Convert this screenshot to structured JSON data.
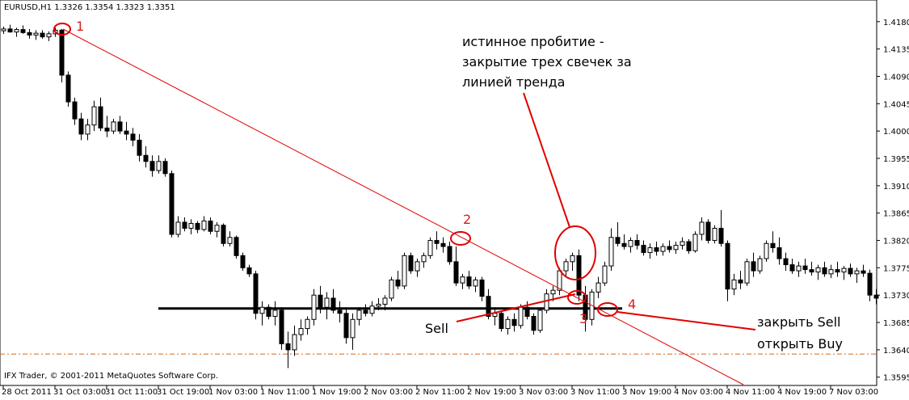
{
  "chart_data": {
    "type": "candlestick",
    "title": "EURUSD,H1  1.3326 1.3354 1.3323 1.3351",
    "footer": "IFX Trader, © 2001-2011 MetaQuotes Software Corp.",
    "ylim": [
      1.3584,
      1.4209
    ],
    "yticks": [
      {
        "value": 1.418,
        "label": "1.4180"
      },
      {
        "value": 1.4135,
        "label": "1.4135"
      },
      {
        "value": 1.409,
        "label": "1.4090"
      },
      {
        "value": 1.4045,
        "label": "1.4045"
      },
      {
        "value": 1.4,
        "label": "1.4000"
      },
      {
        "value": 1.3955,
        "label": "1.3955"
      },
      {
        "value": 1.391,
        "label": "1.3910"
      },
      {
        "value": 1.3865,
        "label": "1.3865"
      },
      {
        "value": 1.382,
        "label": "1.3820"
      },
      {
        "value": 1.3775,
        "label": "1.3775"
      },
      {
        "value": 1.373,
        "label": "1.3730"
      },
      {
        "value": 1.3685,
        "label": "1.3685"
      },
      {
        "value": 1.364,
        "label": "1.3640"
      },
      {
        "value": 1.3595,
        "label": "1.3595"
      }
    ],
    "up_color": "#ffffff",
    "down_color": "#000000",
    "categories": [
      "28 Oct 2011",
      null,
      null,
      null,
      null,
      null,
      null,
      null,
      "31 Oct 03:00",
      null,
      null,
      null,
      null,
      null,
      null,
      null,
      "31 Oct 11:00",
      null,
      null,
      null,
      null,
      null,
      null,
      null,
      "31 Oct 19:00",
      null,
      null,
      null,
      null,
      null,
      null,
      null,
      "1 Nov 03:00",
      null,
      null,
      null,
      null,
      null,
      null,
      null,
      "1 Nov 11:00",
      null,
      null,
      null,
      null,
      null,
      null,
      null,
      "1 Nov 19:00",
      null,
      null,
      null,
      null,
      null,
      null,
      null,
      "2 Nov 03:00",
      null,
      null,
      null,
      null,
      null,
      null,
      null,
      "2 Nov 11:00",
      null,
      null,
      null,
      null,
      null,
      null,
      null,
      "2 Nov 19:00",
      null,
      null,
      null,
      null,
      null,
      null,
      null,
      "3 Nov 03:00",
      null,
      null,
      null,
      null,
      null,
      null,
      null,
      "3 Nov 11:00",
      null,
      null,
      null,
      null,
      null,
      null,
      null,
      "3 Nov 19:00",
      null,
      null,
      null,
      null,
      null,
      null,
      null,
      "4 Nov 03:00",
      null,
      null,
      null,
      null,
      null,
      null,
      null,
      "4 Nov 11:00",
      null,
      null,
      null,
      null,
      null,
      null,
      null,
      "4 Nov 19:00",
      null,
      null,
      null,
      null,
      null,
      null,
      null,
      "7 Nov 03:00",
      null,
      null,
      null,
      null,
      null,
      null,
      null
    ],
    "ohlc": [
      [
        1.4165,
        1.4172,
        1.416,
        1.4168
      ],
      [
        1.4168,
        1.4175,
        1.4162,
        1.4163
      ],
      [
        1.4163,
        1.417,
        1.4155,
        1.4167
      ],
      [
        1.4167,
        1.4174,
        1.416,
        1.4162
      ],
      [
        1.4162,
        1.4168,
        1.4152,
        1.4158
      ],
      [
        1.4158,
        1.4166,
        1.415,
        1.4161
      ],
      [
        1.4161,
        1.4166,
        1.4152,
        1.4155
      ],
      [
        1.4155,
        1.4164,
        1.4148,
        1.416
      ],
      [
        1.416,
        1.417,
        1.4155,
        1.4166
      ],
      [
        1.4166,
        1.4168,
        1.408,
        1.4092
      ],
      [
        1.4092,
        1.4098,
        1.404,
        1.4048
      ],
      [
        1.4048,
        1.4055,
        1.401,
        1.402
      ],
      [
        1.402,
        1.403,
        1.3985,
        1.3995
      ],
      [
        1.3995,
        1.402,
        1.3985,
        1.401
      ],
      [
        1.401,
        1.405,
        1.4,
        1.404
      ],
      [
        1.404,
        1.4055,
        1.4,
        1.4005
      ],
      [
        1.4005,
        1.4025,
        1.399,
        1.4
      ],
      [
        1.4,
        1.402,
        1.3995,
        1.4015
      ],
      [
        1.4015,
        1.4025,
        1.3995,
        1.4
      ],
      [
        1.4,
        1.4015,
        1.3985,
        1.3995
      ],
      [
        1.3995,
        1.4005,
        1.3975,
        1.3985
      ],
      [
        1.3985,
        1.3995,
        1.395,
        1.396
      ],
      [
        1.396,
        1.3975,
        1.394,
        1.395
      ],
      [
        1.395,
        1.396,
        1.3925,
        1.3935
      ],
      [
        1.3935,
        1.396,
        1.393,
        1.395
      ],
      [
        1.395,
        1.3955,
        1.3925,
        1.393
      ],
      [
        1.393,
        1.3935,
        1.3825,
        1.383
      ],
      [
        1.383,
        1.386,
        1.3825,
        1.385
      ],
      [
        1.385,
        1.3858,
        1.3835,
        1.384
      ],
      [
        1.384,
        1.3855,
        1.383,
        1.3848
      ],
      [
        1.3848,
        1.3852,
        1.3832,
        1.3838
      ],
      [
        1.3838,
        1.386,
        1.3835,
        1.3852
      ],
      [
        1.3852,
        1.3858,
        1.383,
        1.3835
      ],
      [
        1.3835,
        1.385,
        1.3825,
        1.3845
      ],
      [
        1.3845,
        1.3848,
        1.381,
        1.3815
      ],
      [
        1.3815,
        1.3835,
        1.381,
        1.3825
      ],
      [
        1.3825,
        1.3828,
        1.379,
        1.3795
      ],
      [
        1.3795,
        1.38,
        1.377,
        1.3775
      ],
      [
        1.3775,
        1.378,
        1.376,
        1.3765
      ],
      [
        1.3765,
        1.377,
        1.369,
        1.37
      ],
      [
        1.37,
        1.372,
        1.368,
        1.371
      ],
      [
        1.371,
        1.3715,
        1.369,
        1.3695
      ],
      [
        1.3695,
        1.372,
        1.368,
        1.3705
      ],
      [
        1.3705,
        1.371,
        1.364,
        1.365
      ],
      [
        1.365,
        1.367,
        1.361,
        1.364
      ],
      [
        1.364,
        1.368,
        1.363,
        1.3665
      ],
      [
        1.3665,
        1.369,
        1.3655,
        1.3675
      ],
      [
        1.3675,
        1.3695,
        1.3665,
        1.369
      ],
      [
        1.369,
        1.374,
        1.368,
        1.373
      ],
      [
        1.373,
        1.3745,
        1.37,
        1.371
      ],
      [
        1.371,
        1.3735,
        1.369,
        1.3725
      ],
      [
        1.3725,
        1.374,
        1.37,
        1.3705
      ],
      [
        1.3705,
        1.372,
        1.3685,
        1.37
      ],
      [
        1.37,
        1.371,
        1.365,
        1.366
      ],
      [
        1.366,
        1.37,
        1.364,
        1.369
      ],
      [
        1.369,
        1.371,
        1.368,
        1.3705
      ],
      [
        1.3705,
        1.3715,
        1.3695,
        1.37
      ],
      [
        1.37,
        1.372,
        1.3695,
        1.3712
      ],
      [
        1.3712,
        1.3725,
        1.3705,
        1.3715
      ],
      [
        1.3715,
        1.373,
        1.3705,
        1.3725
      ],
      [
        1.3725,
        1.376,
        1.372,
        1.3755
      ],
      [
        1.3755,
        1.377,
        1.374,
        1.3745
      ],
      [
        1.3745,
        1.38,
        1.374,
        1.3795
      ],
      [
        1.3795,
        1.38,
        1.3765,
        1.377
      ],
      [
        1.377,
        1.379,
        1.376,
        1.3785
      ],
      [
        1.3785,
        1.38,
        1.3775,
        1.3795
      ],
      [
        1.3795,
        1.3825,
        1.379,
        1.382
      ],
      [
        1.382,
        1.3835,
        1.3805,
        1.3815
      ],
      [
        1.3815,
        1.3825,
        1.38,
        1.381
      ],
      [
        1.381,
        1.3818,
        1.378,
        1.3785
      ],
      [
        1.3785,
        1.381,
        1.3745,
        1.375
      ],
      [
        1.375,
        1.3765,
        1.374,
        1.376
      ],
      [
        1.376,
        1.377,
        1.374,
        1.3745
      ],
      [
        1.3745,
        1.376,
        1.3735,
        1.3755
      ],
      [
        1.3755,
        1.376,
        1.372,
        1.3728
      ],
      [
        1.3728,
        1.374,
        1.369,
        1.3695
      ],
      [
        1.3695,
        1.371,
        1.368,
        1.37
      ],
      [
        1.37,
        1.3705,
        1.367,
        1.3675
      ],
      [
        1.3675,
        1.3695,
        1.3665,
        1.369
      ],
      [
        1.369,
        1.37,
        1.367,
        1.368
      ],
      [
        1.368,
        1.3715,
        1.3675,
        1.371
      ],
      [
        1.371,
        1.372,
        1.369,
        1.3695
      ],
      [
        1.3695,
        1.37,
        1.3665,
        1.3672
      ],
      [
        1.3672,
        1.371,
        1.3668,
        1.3705
      ],
      [
        1.3705,
        1.374,
        1.37,
        1.3732
      ],
      [
        1.3732,
        1.3745,
        1.372,
        1.3738
      ],
      [
        1.3738,
        1.3775,
        1.373,
        1.377
      ],
      [
        1.377,
        1.379,
        1.376,
        1.3785
      ],
      [
        1.3785,
        1.38,
        1.377,
        1.3795
      ],
      [
        1.3795,
        1.3805,
        1.372,
        1.373
      ],
      [
        1.373,
        1.3745,
        1.367,
        1.369
      ],
      [
        1.369,
        1.374,
        1.368,
        1.3735
      ],
      [
        1.3735,
        1.376,
        1.3725,
        1.375
      ],
      [
        1.375,
        1.3785,
        1.3745,
        1.3778
      ],
      [
        1.3778,
        1.384,
        1.377,
        1.3825
      ],
      [
        1.3825,
        1.385,
        1.381,
        1.3815
      ],
      [
        1.3815,
        1.383,
        1.3805,
        1.381
      ],
      [
        1.381,
        1.3825,
        1.38,
        1.382
      ],
      [
        1.382,
        1.383,
        1.3805,
        1.3812
      ],
      [
        1.3812,
        1.382,
        1.3795,
        1.38
      ],
      [
        1.38,
        1.3815,
        1.379,
        1.3808
      ],
      [
        1.3808,
        1.3818,
        1.3795,
        1.3802
      ],
      [
        1.3802,
        1.3815,
        1.3795,
        1.381
      ],
      [
        1.381,
        1.382,
        1.38,
        1.3805
      ],
      [
        1.3805,
        1.3818,
        1.3798,
        1.3812
      ],
      [
        1.3812,
        1.3825,
        1.3805,
        1.3818
      ],
      [
        1.3818,
        1.3822,
        1.3798,
        1.3803
      ],
      [
        1.3803,
        1.3835,
        1.38,
        1.383
      ],
      [
        1.383,
        1.3858,
        1.382,
        1.385
      ],
      [
        1.385,
        1.3855,
        1.3815,
        1.382
      ],
      [
        1.382,
        1.3845,
        1.3815,
        1.384
      ],
      [
        1.384,
        1.387,
        1.381,
        1.3815
      ],
      [
        1.3815,
        1.382,
        1.372,
        1.374
      ],
      [
        1.374,
        1.3765,
        1.373,
        1.3755
      ],
      [
        1.3755,
        1.377,
        1.374,
        1.375
      ],
      [
        1.375,
        1.379,
        1.3745,
        1.3785
      ],
      [
        1.3785,
        1.38,
        1.376,
        1.377
      ],
      [
        1.377,
        1.3795,
        1.3765,
        1.379
      ],
      [
        1.379,
        1.382,
        1.3785,
        1.3815
      ],
      [
        1.3815,
        1.3835,
        1.38,
        1.3808
      ],
      [
        1.3808,
        1.3825,
        1.378,
        1.379
      ],
      [
        1.379,
        1.38,
        1.377,
        1.378
      ],
      [
        1.378,
        1.379,
        1.3765,
        1.377
      ],
      [
        1.377,
        1.3785,
        1.376,
        1.3778
      ],
      [
        1.3778,
        1.379,
        1.3765,
        1.3772
      ],
      [
        1.3772,
        1.3785,
        1.3762,
        1.3768
      ],
      [
        1.3768,
        1.378,
        1.3755,
        1.3775
      ],
      [
        1.3775,
        1.3785,
        1.376,
        1.3765
      ],
      [
        1.3765,
        1.378,
        1.3758,
        1.3772
      ],
      [
        1.3772,
        1.3785,
        1.376,
        1.3768
      ],
      [
        1.3768,
        1.3778,
        1.3755,
        1.3774
      ],
      [
        1.3774,
        1.3782,
        1.376,
        1.3765
      ],
      [
        1.3765,
        1.3775,
        1.375,
        1.377
      ],
      [
        1.377,
        1.378,
        1.376,
        1.3766
      ],
      [
        1.3766,
        1.3772,
        1.372,
        1.373
      ],
      [
        1.373,
        1.374,
        1.3715,
        1.3725
      ]
    ],
    "hlines": [
      {
        "value": 1.3708,
        "color": "#000000",
        "dashed": false
      },
      {
        "value": 1.3633,
        "color": "#d2691e",
        "dashed": true
      }
    ],
    "annotations": {
      "points": [
        "1",
        "2",
        "3",
        "4"
      ],
      "breakout": [
        "истинное пробитие -",
        "закрытие трех свечек за",
        "линией тренда"
      ],
      "sell": "Sell",
      "exit": [
        "закрыть Sell",
        "открыть Buy"
      ]
    }
  }
}
